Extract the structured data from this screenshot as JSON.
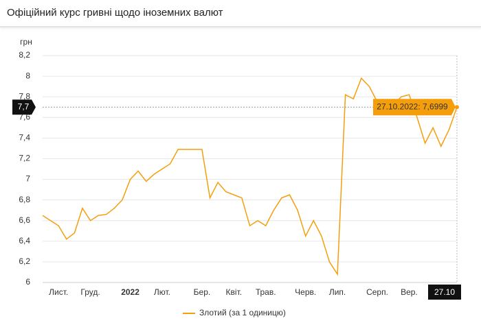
{
  "header": {
    "title": "Офіційний курс гривні щодо іноземних валют"
  },
  "chart_data": {
    "type": "line",
    "y_label": "грн",
    "categories": [
      null,
      null,
      "Лист.",
      null,
      null,
      null,
      "Груд.",
      null,
      null,
      null,
      null,
      "2022",
      null,
      null,
      null,
      "Лют.",
      null,
      null,
      null,
      null,
      "Бер.",
      null,
      null,
      null,
      "Квіт.",
      null,
      null,
      null,
      "Трав.",
      null,
      null,
      null,
      null,
      "Черв.",
      null,
      null,
      null,
      "Лип.",
      null,
      null,
      null,
      null,
      "Серп.",
      null,
      null,
      null,
      "Вер.",
      null,
      null,
      null,
      null,
      null,
      "27.10"
    ],
    "series": [
      {
        "name": "Злотий (за 1 одиницю)",
        "color": "#f59e0b",
        "values": [
          6.65,
          6.6,
          6.55,
          6.42,
          6.48,
          6.72,
          6.6,
          6.65,
          6.66,
          6.72,
          6.8,
          7.0,
          7.08,
          6.98,
          7.05,
          7.1,
          7.15,
          7.29,
          7.29,
          7.29,
          7.29,
          6.82,
          6.97,
          6.88,
          6.85,
          6.82,
          6.55,
          6.6,
          6.55,
          6.7,
          6.82,
          6.85,
          6.7,
          6.45,
          6.6,
          6.45,
          6.2,
          6.08,
          7.82,
          7.78,
          7.98,
          7.9,
          7.75,
          7.75,
          7.72,
          7.8,
          7.82,
          7.6,
          7.35,
          7.5,
          7.32,
          7.48,
          7.6999
        ]
      }
    ],
    "ylim": [
      6,
      8.2
    ],
    "yticks": [
      6,
      {
        "value": 6.2,
        "label": "6,2"
      },
      {
        "value": 6.4,
        "label": "6,4"
      },
      {
        "value": 6.6,
        "label": "6,6"
      },
      {
        "value": 6.8,
        "label": "6,8"
      },
      7,
      {
        "value": 7.2,
        "label": "7,2"
      },
      {
        "value": 7.4,
        "label": "7,4"
      },
      {
        "value": 7.6,
        "label": "7,6"
      },
      {
        "value": 7.8,
        "label": "7,8"
      },
      8,
      {
        "value": 8.2,
        "label": "8,2"
      }
    ],
    "grid": true,
    "crosshair": {
      "value": 7.7,
      "label": "7,7"
    },
    "tooltip": {
      "value": 7.6999,
      "label": "27.10.2022: 7,6999"
    }
  }
}
